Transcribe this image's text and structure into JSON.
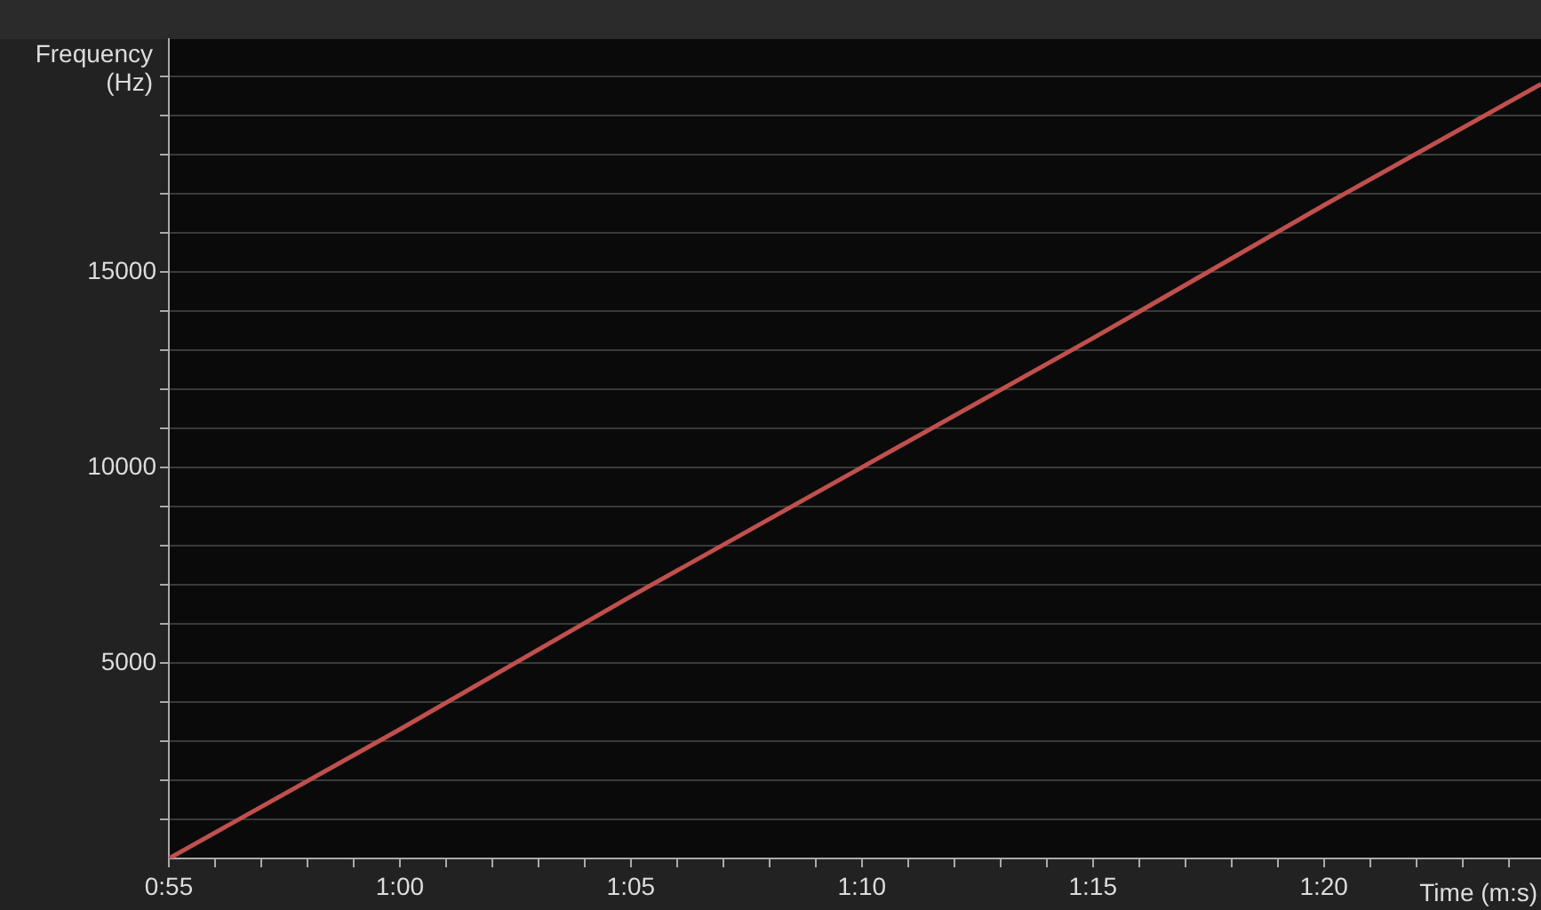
{
  "chart_data": {
    "type": "line",
    "xlabel": "Time (m:s)",
    "ylabel": "Frequency (Hz)",
    "x": [
      55,
      60,
      65,
      70,
      75,
      80,
      84.7
    ],
    "series": [
      {
        "color": "#c0504d",
        "values": [
          0,
          3300,
          6700,
          10000,
          13300,
          16700,
          19800
        ]
      }
    ],
    "xlim": [
      55,
      84.7
    ],
    "xticks": [
      {
        "value": 55,
        "label": "0:55"
      },
      {
        "value": 56,
        "label": null
      },
      {
        "value": 57,
        "label": null
      },
      {
        "value": 58,
        "label": null
      },
      {
        "value": 59,
        "label": null
      },
      {
        "value": 60,
        "label": "1:00"
      },
      {
        "value": 61,
        "label": null
      },
      {
        "value": 62,
        "label": null
      },
      {
        "value": 63,
        "label": null
      },
      {
        "value": 64,
        "label": null
      },
      {
        "value": 65,
        "label": "1:05"
      },
      {
        "value": 66,
        "label": null
      },
      {
        "value": 67,
        "label": null
      },
      {
        "value": 68,
        "label": null
      },
      {
        "value": 69,
        "label": null
      },
      {
        "value": 70,
        "label": "1:10"
      },
      {
        "value": 71,
        "label": null
      },
      {
        "value": 72,
        "label": null
      },
      {
        "value": 73,
        "label": null
      },
      {
        "value": 74,
        "label": null
      },
      {
        "value": 75,
        "label": "1:15"
      },
      {
        "value": 76,
        "label": null
      },
      {
        "value": 77,
        "label": null
      },
      {
        "value": 78,
        "label": null
      },
      {
        "value": 79,
        "label": null
      },
      {
        "value": 80,
        "label": "1:20"
      },
      {
        "value": 81,
        "label": null
      },
      {
        "value": 82,
        "label": null
      },
      {
        "value": 83,
        "label": null
      },
      {
        "value": 84,
        "label": null
      }
    ],
    "ylim": [
      0,
      20950
    ],
    "yticks": [
      {
        "value": 1000,
        "label": null
      },
      {
        "value": 2000,
        "label": null
      },
      {
        "value": 3000,
        "label": null
      },
      {
        "value": 4000,
        "label": null
      },
      5000,
      {
        "value": 6000,
        "label": null
      },
      {
        "value": 7000,
        "label": null
      },
      {
        "value": 8000,
        "label": null
      },
      {
        "value": 9000,
        "label": null
      },
      10000,
      {
        "value": 11000,
        "label": null
      },
      {
        "value": 12000,
        "label": null
      },
      {
        "value": 13000,
        "label": null
      },
      {
        "value": 14000,
        "label": null
      },
      15000,
      {
        "value": 16000,
        "label": null
      },
      {
        "value": 17000,
        "label": null
      },
      {
        "value": 18000,
        "label": null
      },
      {
        "value": 19000,
        "label": null
      },
      {
        "value": 20000,
        "label": null
      }
    ],
    "grid": "y",
    "marker": "none",
    "line_style": "solid",
    "legend": false
  }
}
